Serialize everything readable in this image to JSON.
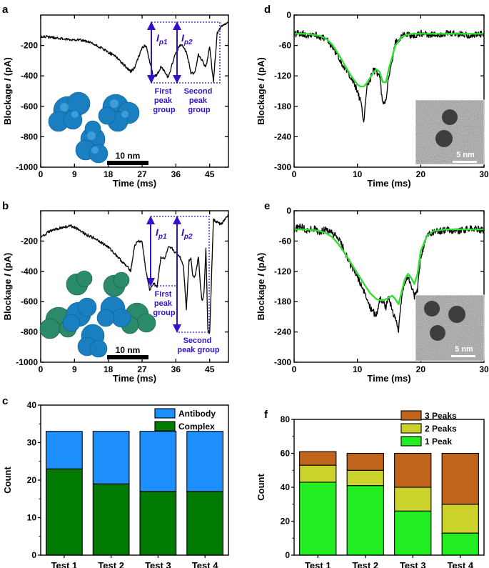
{
  "panel_labels": {
    "a": "a",
    "b": "b",
    "c": "c",
    "d": "d",
    "e": "e",
    "f": "f"
  },
  "colors": {
    "trace": "#000000",
    "fit": "#33dd33",
    "annotation": "#3311cc",
    "antibody": "#1e8fff",
    "complex": "#007a00",
    "peak3": "#c0651b",
    "peak2": "#cbd22c",
    "peak1": "#22ee22",
    "protein_blue": "#1a7fc0",
    "protein_green": "#2a8a6a"
  },
  "annotations": {
    "ip1": "I",
    "ip1_sub": "p1",
    "ip2": "I",
    "ip2_sub": "p2",
    "first_group_l1": "First",
    "first_group_l2": "peak",
    "first_group_l3": "group",
    "second_group_a_l1": "Second",
    "second_group_a_l2": "peak",
    "second_group_a_l3": "group",
    "second_group_b_l1": "Second",
    "second_group_b_l2": "peak group"
  },
  "scalebar_10nm": "10 nm",
  "scalebar_5nm": "5 nm",
  "chart_data": [
    {
      "id": "a",
      "type": "line",
      "xlabel": "Time (ms)",
      "ylabel_pre": "Blockage ",
      "ylabel_i": "I",
      "ylabel_post": " (pA)",
      "xlim": [
        0,
        50
      ],
      "ylim": [
        -1000,
        0
      ],
      "xticks": [
        0,
        9,
        18,
        27,
        36,
        45
      ],
      "yticks": [
        -1000,
        -800,
        -600,
        -400,
        -200
      ],
      "series": [
        {
          "name": "trace",
          "x": [
            0,
            4,
            8,
            10,
            13,
            16,
            18,
            20,
            22,
            24,
            25,
            26,
            27,
            28,
            29,
            30,
            31,
            32,
            33,
            34,
            35,
            36,
            37,
            38,
            39,
            40,
            41,
            42,
            43,
            44,
            45,
            46,
            47,
            48,
            50
          ],
          "values": [
            -140,
            -150,
            -165,
            -160,
            -180,
            -215,
            -245,
            -270,
            -325,
            -370,
            -350,
            -280,
            -215,
            -200,
            -300,
            -405,
            -395,
            -340,
            -370,
            -415,
            -320,
            -250,
            -200,
            -205,
            -260,
            -380,
            -385,
            -260,
            -300,
            -345,
            -210,
            -440,
            -120,
            -80,
            -50
          ]
        }
      ]
    },
    {
      "id": "b",
      "type": "line",
      "xlabel": "Time (ms)",
      "ylabel_pre": "Blockage ",
      "ylabel_i": "I",
      "ylabel_post": " (pA)",
      "xlim": [
        0,
        50
      ],
      "ylim": [
        -1000,
        0
      ],
      "xticks": [
        0,
        9,
        18,
        27,
        36,
        45
      ],
      "yticks": [
        -1000,
        -800,
        -600,
        -400,
        -200
      ],
      "series": [
        {
          "name": "trace",
          "x": [
            0,
            2,
            5,
            8,
            10,
            12,
            15,
            18,
            20,
            22,
            24,
            25,
            26,
            27,
            28,
            29,
            30,
            31,
            32,
            33,
            34,
            35,
            36,
            37,
            38,
            38.8,
            39.5,
            40,
            40.5,
            41,
            41.5,
            42,
            42.5,
            43,
            43.5,
            44,
            44.5,
            45,
            46,
            48,
            50
          ],
          "values": [
            -180,
            -140,
            -115,
            -100,
            -120,
            -155,
            -190,
            -240,
            -290,
            -345,
            -395,
            -230,
            -200,
            -205,
            -395,
            -520,
            -480,
            -500,
            -305,
            -320,
            -245,
            -250,
            -280,
            -300,
            -360,
            -650,
            -330,
            -310,
            -430,
            -440,
            -380,
            -300,
            -480,
            -600,
            -540,
            -240,
            -780,
            -810,
            -60,
            -90,
            -30
          ]
        }
      ]
    },
    {
      "id": "d",
      "type": "line",
      "xlabel": "Time (ms)",
      "ylabel_pre": "Blockage ",
      "ylabel_i": "I",
      "ylabel_post": " (pA)",
      "xlim": [
        0,
        30
      ],
      "ylim": [
        -300,
        0
      ],
      "xticks": [
        0,
        10,
        20,
        30
      ],
      "yticks": [
        -300,
        -240,
        -180,
        -120,
        -60,
        0
      ],
      "series": [
        {
          "name": "trace",
          "x": [
            0,
            1,
            2,
            3,
            4,
            5,
            6,
            7,
            8,
            9,
            10,
            10.5,
            11,
            11.5,
            12,
            12.5,
            13,
            13.5,
            14,
            14.5,
            15,
            15.5,
            16,
            17,
            18,
            19,
            20,
            22,
            24,
            26,
            28,
            30
          ],
          "values": [
            -38,
            -35,
            -40,
            -37,
            -42,
            -48,
            -62,
            -82,
            -105,
            -122,
            -150,
            -170,
            -210,
            -140,
            -128,
            -110,
            -112,
            -120,
            -175,
            -165,
            -120,
            -90,
            -55,
            -40,
            -38,
            -42,
            -36,
            -40,
            -37,
            -38,
            -40,
            -38
          ]
        },
        {
          "name": "fit",
          "x": [
            0,
            2,
            4,
            5,
            6,
            7,
            8,
            9,
            10,
            10.5,
            11,
            11.5,
            12,
            12.5,
            13,
            13.5,
            14,
            14.5,
            15,
            16,
            17,
            18,
            19,
            22,
            26,
            30
          ],
          "values": [
            -37,
            -37,
            -41,
            -46,
            -58,
            -77,
            -99,
            -120,
            -137,
            -141,
            -141,
            -134,
            -124,
            -114,
            -107,
            -112,
            -132,
            -133,
            -105,
            -60,
            -43,
            -38,
            -37,
            -37,
            -37,
            -37
          ]
        }
      ]
    },
    {
      "id": "e",
      "type": "line",
      "xlabel": "Time (ms)",
      "ylabel_pre": "Blockage ",
      "ylabel_i": "I",
      "ylabel_post": " (pA)",
      "xlim": [
        0,
        30
      ],
      "ylim": [
        -300,
        0
      ],
      "xticks": [
        0,
        10,
        20,
        30
      ],
      "yticks": [
        -300,
        -240,
        -180,
        -120,
        -60,
        0
      ],
      "series": [
        {
          "name": "trace",
          "x": [
            0,
            1,
            2,
            3,
            4,
            5,
            6,
            7,
            8,
            9,
            10,
            11,
            12,
            13,
            13.5,
            14,
            14.5,
            15,
            15.5,
            16,
            16.5,
            17,
            17.5,
            18,
            18.5,
            19,
            19.5,
            20,
            21,
            22,
            24,
            26,
            28,
            30
          ],
          "values": [
            -38,
            -30,
            -40,
            -35,
            -42,
            -38,
            -45,
            -55,
            -80,
            -110,
            -130,
            -160,
            -190,
            -210,
            -175,
            -180,
            -190,
            -170,
            -200,
            -210,
            -240,
            -170,
            -140,
            -130,
            -150,
            -170,
            -155,
            -90,
            -50,
            -42,
            -38,
            -40,
            -35,
            -38
          ]
        },
        {
          "name": "fit",
          "x": [
            0,
            2,
            4,
            5,
            6,
            7,
            8,
            9,
            10,
            11,
            12,
            13,
            14,
            15,
            15.5,
            16,
            16.5,
            17,
            17.5,
            18,
            18.5,
            19,
            19.5,
            20,
            21,
            22,
            24,
            30
          ],
          "values": [
            -37,
            -37,
            -40,
            -44,
            -52,
            -66,
            -84,
            -104,
            -124,
            -144,
            -163,
            -175,
            -178,
            -172,
            -168,
            -175,
            -185,
            -160,
            -135,
            -125,
            -133,
            -145,
            -125,
            -80,
            -50,
            -40,
            -37,
            -37
          ]
        }
      ]
    },
    {
      "id": "c",
      "type": "bar",
      "stacked": true,
      "categories": [
        "Test 1",
        "Test 2",
        "Test 3",
        "Test 4"
      ],
      "ylabel": "Count",
      "ylim": [
        0,
        40
      ],
      "yticks": [
        0,
        10,
        20,
        30,
        40
      ],
      "series": [
        {
          "name": "Complex",
          "values": [
            23,
            19,
            17,
            17
          ]
        },
        {
          "name": "Antibody",
          "values": [
            10,
            14,
            16,
            16
          ]
        }
      ],
      "legend": [
        "Antibody",
        "Complex"
      ]
    },
    {
      "id": "f",
      "type": "bar",
      "stacked": true,
      "categories": [
        "Test 1",
        "Test 2",
        "Test 3",
        "Test 4"
      ],
      "ylabel": "Count",
      "ylim": [
        0,
        80
      ],
      "yticks": [
        0,
        20,
        40,
        60,
        80
      ],
      "series": [
        {
          "name": "1 Peak",
          "values": [
            43,
            41,
            26,
            13
          ]
        },
        {
          "name": "2 Peaks",
          "values": [
            10,
            9,
            14,
            17
          ]
        },
        {
          "name": "3 Peaks",
          "values": [
            8,
            10,
            20,
            30
          ]
        }
      ],
      "legend": [
        "3 Peaks",
        "2 Peaks",
        "1 Peak"
      ]
    }
  ]
}
